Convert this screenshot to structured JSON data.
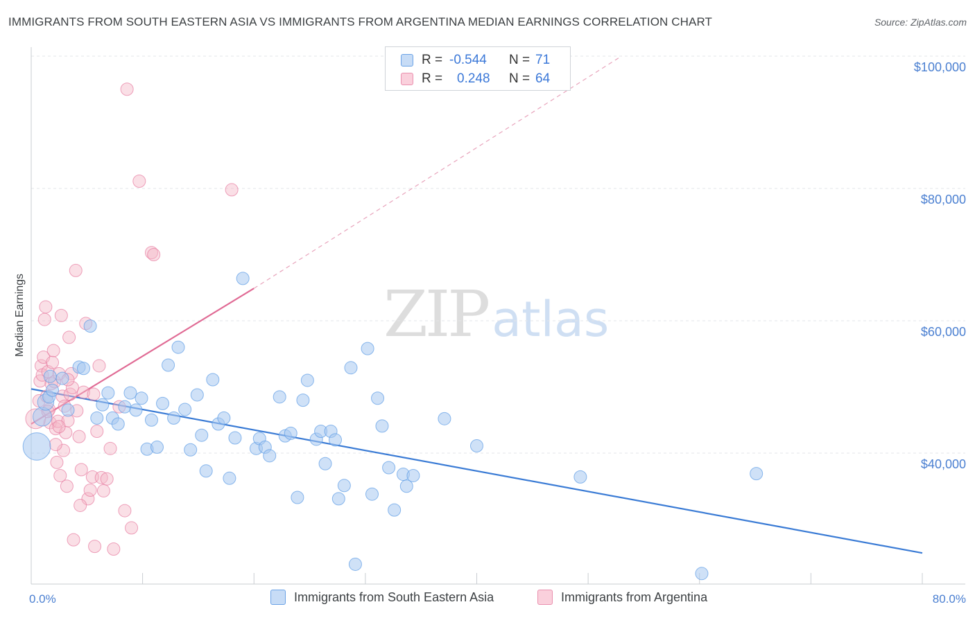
{
  "title": "IMMIGRANTS FROM SOUTH EASTERN ASIA VS IMMIGRANTS FROM ARGENTINA MEDIAN EARNINGS CORRELATION CHART",
  "source": "Source: ZipAtlas.com",
  "watermark": {
    "left": "ZIP",
    "right": "atlas"
  },
  "legend": {
    "rows": [
      {
        "r_label": "R =",
        "r_value": "-0.544",
        "n_label": "N =",
        "n_value": "71",
        "color": "#a8c8f0"
      },
      {
        "r_label": "R =",
        "r_value": "0.248",
        "n_label": "N =",
        "n_value": "64",
        "color": "#f5b8c8"
      }
    ]
  },
  "bottom_legend": {
    "items": [
      {
        "label": "Immigrants from South Eastern Asia",
        "color": "#a8c8f0"
      },
      {
        "label": "Immigrants from Argentina",
        "color": "#f5b8c8"
      }
    ]
  },
  "chart_data": {
    "type": "scatter",
    "title": "IMMIGRANTS FROM SOUTH EASTERN ASIA VS IMMIGRANTS FROM ARGENTINA MEDIAN EARNINGS CORRELATION CHART",
    "xlabel": "",
    "ylabel": "Median Earnings",
    "xlim": [
      0,
      80
    ],
    "ylim": [
      18000,
      104000
    ],
    "x_tick_labels": [
      "0.0%",
      "80.0%"
    ],
    "y_ticks": [
      40000,
      60000,
      80000,
      100000
    ],
    "y_tick_labels": [
      "$40,000",
      "$60,000",
      "$80,000",
      "$100,000"
    ],
    "grid": true,
    "series": [
      {
        "name": "Immigrants from South Eastern Asia",
        "color": "#5b9be6",
        "fill": "#a8c8f0",
        "r": -0.544,
        "n": 71,
        "trend": {
          "x0": 0,
          "y0": 49700,
          "x1": 80,
          "y1": 24900
        },
        "points": [
          [
            0.5,
            41000,
            2.2
          ],
          [
            1.0,
            45500,
            1.5
          ],
          [
            1.3,
            47700,
            1.3
          ],
          [
            1.6,
            48500,
            1.0
          ],
          [
            1.9,
            49500,
            1.0
          ],
          [
            2.8,
            51300,
            1.0
          ],
          [
            3.3,
            46500,
            1.0
          ],
          [
            4.3,
            53000,
            1.0
          ],
          [
            4.7,
            52800,
            1.0
          ],
          [
            5.3,
            59200,
            1.0
          ],
          [
            5.9,
            45300,
            1.0
          ],
          [
            6.4,
            47300,
            1.0
          ],
          [
            6.9,
            49100,
            1.0
          ],
          [
            7.3,
            45300,
            1.0
          ],
          [
            7.8,
            44400,
            1.0
          ],
          [
            8.4,
            47000,
            1.0
          ],
          [
            8.9,
            49100,
            1.0
          ],
          [
            9.4,
            46500,
            1.0
          ],
          [
            9.9,
            48300,
            1.0
          ],
          [
            10.4,
            40600,
            1.0
          ],
          [
            10.8,
            45000,
            1.0
          ],
          [
            11.3,
            40900,
            1.0
          ],
          [
            11.8,
            47500,
            1.0
          ],
          [
            12.3,
            53300,
            1.0
          ],
          [
            12.8,
            45300,
            1.0
          ],
          [
            13.2,
            56000,
            1.0
          ],
          [
            13.8,
            46600,
            1.0
          ],
          [
            14.3,
            40500,
            1.0
          ],
          [
            14.9,
            48800,
            1.0
          ],
          [
            15.3,
            42700,
            1.0
          ],
          [
            15.7,
            37300,
            1.0
          ],
          [
            16.3,
            51100,
            1.0
          ],
          [
            16.8,
            44400,
            1.0
          ],
          [
            17.3,
            45300,
            1.0
          ],
          [
            17.8,
            36200,
            1.0
          ],
          [
            18.3,
            42300,
            1.0
          ],
          [
            19.0,
            66400,
            1.0
          ],
          [
            20.2,
            40700,
            1.0
          ],
          [
            20.5,
            42200,
            1.0
          ],
          [
            21.0,
            40900,
            1.0
          ],
          [
            21.4,
            39600,
            1.0
          ],
          [
            22.3,
            48500,
            1.0
          ],
          [
            22.8,
            42600,
            1.0
          ],
          [
            23.3,
            43000,
            1.0
          ],
          [
            23.9,
            33300,
            1.0
          ],
          [
            24.4,
            48000,
            1.0
          ],
          [
            24.8,
            51000,
            1.0
          ],
          [
            25.6,
            42100,
            1.0
          ],
          [
            26.0,
            43300,
            1.0
          ],
          [
            26.4,
            38400,
            1.0
          ],
          [
            26.9,
            43300,
            1.0
          ],
          [
            27.3,
            42000,
            1.0
          ],
          [
            27.6,
            33100,
            1.0
          ],
          [
            28.1,
            35100,
            1.0
          ],
          [
            28.7,
            52900,
            1.0
          ],
          [
            29.1,
            23200,
            1.0
          ],
          [
            30.2,
            55800,
            1.0
          ],
          [
            30.6,
            33800,
            1.0
          ],
          [
            31.1,
            48300,
            1.0
          ],
          [
            31.5,
            44100,
            1.0
          ],
          [
            32.1,
            37800,
            1.0
          ],
          [
            32.6,
            31400,
            1.0
          ],
          [
            33.4,
            36800,
            1.0
          ],
          [
            33.7,
            35000,
            1.0
          ],
          [
            34.3,
            36600,
            1.0
          ],
          [
            37.1,
            45200,
            1.0
          ],
          [
            40.0,
            41100,
            1.0
          ],
          [
            49.3,
            36400,
            1.0
          ],
          [
            60.2,
            21800,
            1.0
          ],
          [
            65.1,
            36900,
            1.0
          ],
          [
            1.7,
            51600,
            1.0
          ]
        ]
      },
      {
        "name": "Immigrants from Argentina",
        "color": "#e77aa0",
        "fill": "#f5b8c8",
        "r": 0.248,
        "n": 64,
        "trend": {
          "x0": 0,
          "y0": 44400,
          "x1": 20,
          "y1": 64900
        },
        "trend_ext": {
          "x0": 20,
          "y0": 64900,
          "x1": 53,
          "y1": 100000
        },
        "points": [
          [
            0.4,
            45200,
            1.6
          ],
          [
            0.7,
            47900,
            1.0
          ],
          [
            0.8,
            50900,
            1.0
          ],
          [
            0.9,
            53200,
            1.0
          ],
          [
            1.0,
            51800,
            1.0
          ],
          [
            1.1,
            54500,
            1.0
          ],
          [
            1.2,
            60200,
            1.0
          ],
          [
            1.3,
            62100,
            1.0
          ],
          [
            1.4,
            48600,
            1.0
          ],
          [
            1.5,
            52300,
            1.0
          ],
          [
            1.6,
            46600,
            1.0
          ],
          [
            1.7,
            44600,
            1.0
          ],
          [
            1.8,
            50500,
            1.0
          ],
          [
            1.9,
            53700,
            1.0
          ],
          [
            2.0,
            55500,
            1.0
          ],
          [
            2.1,
            50800,
            1.0
          ],
          [
            2.2,
            43700,
            1.0
          ],
          [
            2.3,
            38600,
            1.0
          ],
          [
            2.4,
            44800,
            1.0
          ],
          [
            2.5,
            52000,
            1.0
          ],
          [
            2.6,
            36600,
            1.0
          ],
          [
            2.7,
            60800,
            1.0
          ],
          [
            2.8,
            48600,
            1.0
          ],
          [
            2.9,
            40400,
            1.0
          ],
          [
            3.0,
            47100,
            1.0
          ],
          [
            3.1,
            43100,
            1.0
          ],
          [
            3.2,
            35000,
            1.0
          ],
          [
            3.3,
            44900,
            1.0
          ],
          [
            3.4,
            57500,
            1.0
          ],
          [
            3.5,
            48900,
            1.0
          ],
          [
            3.6,
            52000,
            1.0
          ],
          [
            3.8,
            26900,
            1.0
          ],
          [
            4.1,
            46400,
            1.0
          ],
          [
            4.3,
            42500,
            1.0
          ],
          [
            4.5,
            37500,
            1.0
          ],
          [
            4.7,
            49200,
            1.0
          ],
          [
            4.9,
            59600,
            1.0
          ],
          [
            5.1,
            33100,
            1.0
          ],
          [
            5.3,
            34400,
            1.0
          ],
          [
            5.5,
            36400,
            1.0
          ],
          [
            5.7,
            25900,
            1.0
          ],
          [
            5.9,
            43300,
            1.0
          ],
          [
            6.1,
            53200,
            1.0
          ],
          [
            6.3,
            36300,
            1.0
          ],
          [
            6.5,
            34300,
            1.0
          ],
          [
            6.8,
            36100,
            1.0
          ],
          [
            7.1,
            40700,
            1.0
          ],
          [
            7.4,
            25500,
            1.0
          ],
          [
            7.9,
            47000,
            1.0
          ],
          [
            8.4,
            31300,
            1.0
          ],
          [
            8.6,
            95000,
            1.0
          ],
          [
            9.0,
            28700,
            1.0
          ],
          [
            9.7,
            81100,
            1.0
          ],
          [
            10.8,
            70300,
            1.0
          ],
          [
            11.0,
            70000,
            1.0
          ],
          [
            18.0,
            79800,
            1.0
          ],
          [
            4.0,
            67600,
            1.0
          ],
          [
            2.5,
            44000,
            1.0
          ],
          [
            3.7,
            49900,
            1.0
          ],
          [
            1.5,
            46300,
            1.0
          ],
          [
            4.4,
            32100,
            1.0
          ],
          [
            2.2,
            41300,
            1.0
          ],
          [
            5.6,
            48900,
            1.0
          ],
          [
            3.3,
            51100,
            1.0
          ]
        ]
      }
    ]
  }
}
